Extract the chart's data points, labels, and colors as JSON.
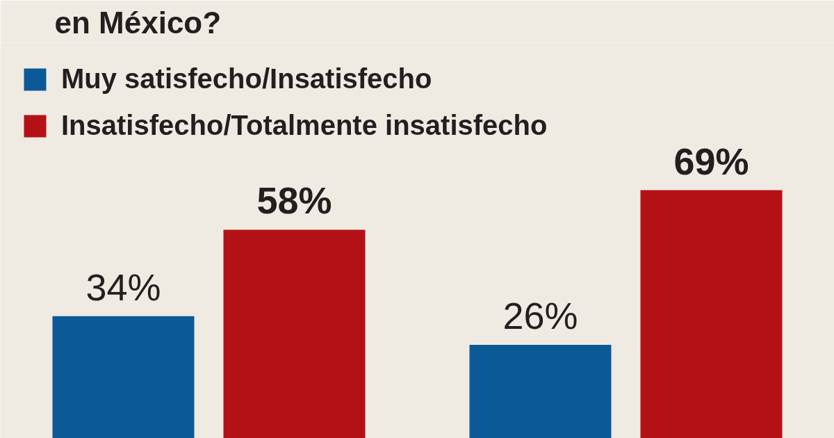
{
  "chart_data": {
    "type": "bar",
    "title": "en México?",
    "categories": [
      null,
      null
    ],
    "series": [
      {
        "name": "Muy satisfecho/Insatisfecho",
        "color": "#0b5a97",
        "values": [
          34,
          26
        ],
        "value_labels": [
          "34%",
          "26%"
        ]
      },
      {
        "name": "Insatisfecho/Totalmente insatisfecho",
        "color": "#b41117",
        "values": [
          58,
          69
        ],
        "value_labels": [
          "58%",
          "69%"
        ]
      }
    ],
    "ylim": [
      0,
      110
    ],
    "tick_labels": false,
    "legend": "top left"
  }
}
